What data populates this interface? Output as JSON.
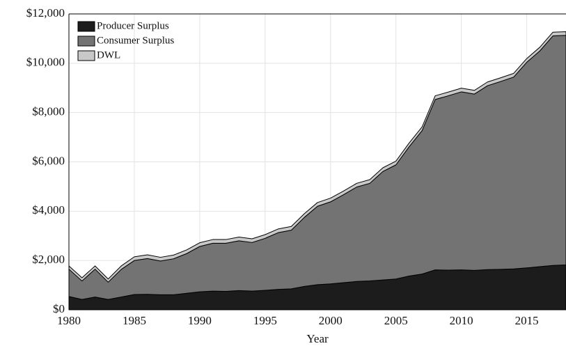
{
  "chart_data": {
    "type": "stacked_area",
    "x_label": "Year",
    "x": [
      1980,
      1981,
      1982,
      1983,
      1984,
      1985,
      1986,
      1987,
      1988,
      1989,
      1990,
      1991,
      1992,
      1993,
      1994,
      1995,
      1996,
      1997,
      1998,
      1999,
      2000,
      2001,
      2002,
      2003,
      2004,
      2005,
      2006,
      2007,
      2008,
      2009,
      2010,
      2011,
      2012,
      2013,
      2014,
      2015,
      2016,
      2017,
      2018
    ],
    "series": [
      {
        "name": "Producer Surplus",
        "color": "#1c1c1c",
        "values": [
          540,
          420,
          520,
          420,
          520,
          620,
          630,
          610,
          610,
          670,
          730,
          760,
          750,
          780,
          760,
          790,
          830,
          850,
          950,
          1020,
          1050,
          1100,
          1150,
          1170,
          1210,
          1250,
          1370,
          1450,
          1620,
          1610,
          1620,
          1600,
          1630,
          1640,
          1660,
          1700,
          1750,
          1800,
          1820
        ]
      },
      {
        "name": "Consumer Surplus",
        "color": "#737373",
        "values": [
          1110,
          750,
          1130,
          700,
          1120,
          1380,
          1450,
          1370,
          1460,
          1610,
          1840,
          1940,
          1950,
          2020,
          1970,
          2110,
          2300,
          2380,
          2800,
          3180,
          3330,
          3570,
          3830,
          3960,
          4400,
          4630,
          5240,
          5820,
          6910,
          7070,
          7220,
          7150,
          7460,
          7620,
          7780,
          8340,
          8750,
          9310,
          9310
        ]
      },
      {
        "name": "DWL",
        "color": "#c8c8c8",
        "values": [
          130,
          130,
          130,
          130,
          140,
          150,
          150,
          150,
          150,
          150,
          150,
          150,
          150,
          150,
          150,
          150,
          150,
          150,
          150,
          150,
          150,
          150,
          150,
          150,
          150,
          150,
          150,
          150,
          150,
          150,
          150,
          150,
          150,
          150,
          150,
          150,
          150,
          150,
          150
        ]
      }
    ],
    "xlim": [
      1980,
      2018
    ],
    "xticks": [
      1980,
      1985,
      1990,
      1995,
      2000,
      2005,
      2010,
      2015
    ],
    "ylim": [
      0,
      12000
    ],
    "yticks": [
      {
        "value": 0,
        "label": "$0"
      },
      {
        "value": 2000,
        "label": "$2,000"
      },
      {
        "value": 4000,
        "label": "$4,000"
      },
      {
        "value": 6000,
        "label": "$6,000"
      },
      {
        "value": 8000,
        "label": "$8,000"
      },
      {
        "value": 10000,
        "label": "$10,000"
      },
      {
        "value": 12000,
        "label": "$12,000"
      }
    ],
    "grid": true,
    "legend": "upper left"
  }
}
